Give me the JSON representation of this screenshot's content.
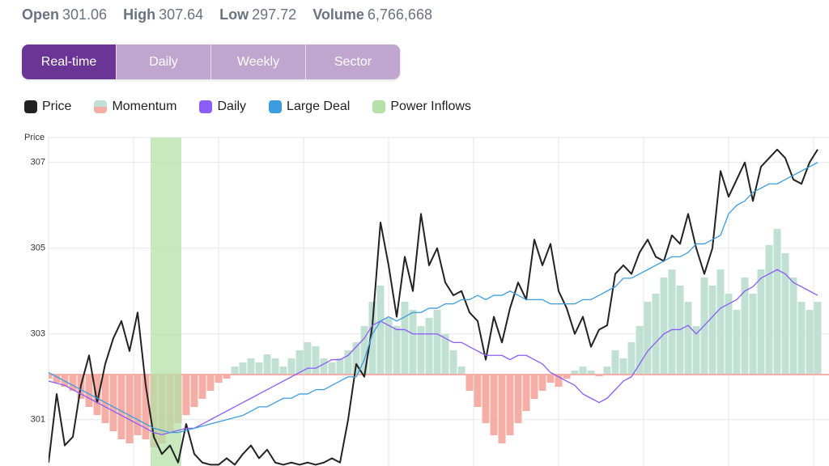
{
  "stats": [
    {
      "label": "Open",
      "value": "301.06"
    },
    {
      "label": "High",
      "value": "307.64"
    },
    {
      "label": "Low",
      "value": "297.72"
    },
    {
      "label": "Volume",
      "value": "6,766,668"
    }
  ],
  "tabs": [
    "Real-time",
    "Daily",
    "Weekly",
    "Sector"
  ],
  "chart_data": {
    "type": "line",
    "y_label": "Price",
    "ylim": [
      299.92,
      307.58
    ],
    "yticks": [
      301,
      303,
      305,
      307
    ],
    "y2lim": [
      -1.13,
      2.93
    ],
    "grid": true,
    "series": [
      {
        "name": "Price",
        "type": "line",
        "color": "#222222",
        "values": [
          300.0,
          301.6,
          300.4,
          300.6,
          301.8,
          302.5,
          301.4,
          302.3,
          302.9,
          303.3,
          302.6,
          303.5,
          301.8,
          300.6,
          300.2,
          300.4,
          300.0,
          300.9,
          300.2,
          300.0,
          299.95,
          299.95,
          300.1,
          299.95,
          300.2,
          300.4,
          300.1,
          300.3,
          300.0,
          299.95,
          300.0,
          299.95,
          300.0,
          299.95,
          300.0,
          300.1,
          300.0,
          301.0,
          302.3,
          302.0,
          303.2,
          305.6,
          304.6,
          303.4,
          304.8,
          304.0,
          305.8,
          304.6,
          305.0,
          304.2,
          303.9,
          304.0,
          303.5,
          303.3,
          302.4,
          303.4,
          302.8,
          303.6,
          304.2,
          303.8,
          305.2,
          304.6,
          305.1,
          304.0,
          303.6,
          303.0,
          303.4,
          302.7,
          303.1,
          303.2,
          304.4,
          304.6,
          304.4,
          304.9,
          305.2,
          304.8,
          304.7,
          305.3,
          305.1,
          305.8,
          305.0,
          304.4,
          305.0,
          306.8,
          306.2,
          306.6,
          307.0,
          306.1,
          306.9,
          307.1,
          307.3,
          307.1,
          306.6,
          306.5,
          307.0,
          307.3
        ]
      },
      {
        "name": "Momentum",
        "type": "bar",
        "axis": "y2",
        "color": "#bfe0d3",
        "negative_color": "#f4aea5",
        "values": [
          -0.05,
          -0.1,
          -0.15,
          -0.2,
          -0.3,
          -0.4,
          -0.5,
          -0.6,
          -0.7,
          -0.8,
          -0.85,
          -0.75,
          -0.8,
          -0.9,
          -0.85,
          -0.7,
          -0.6,
          -0.5,
          -0.4,
          -0.3,
          -0.2,
          -0.1,
          -0.05,
          0.1,
          0.15,
          0.2,
          0.15,
          0.25,
          0.2,
          0.1,
          0.2,
          0.3,
          0.4,
          0.35,
          0.2,
          0.15,
          0.2,
          0.3,
          0.4,
          0.6,
          0.9,
          1.1,
          0.7,
          0.6,
          0.9,
          0.8,
          0.6,
          0.7,
          0.8,
          0.5,
          0.3,
          0.1,
          -0.2,
          -0.4,
          -0.6,
          -0.75,
          -0.85,
          -0.75,
          -0.6,
          -0.45,
          -0.3,
          -0.2,
          -0.1,
          -0.15,
          -0.05,
          0.05,
          0.1,
          0.05,
          -0.02,
          0.1,
          0.3,
          0.2,
          0.4,
          0.6,
          0.9,
          1.0,
          1.2,
          1.3,
          1.1,
          0.9,
          0.6,
          1.2,
          1.1,
          1.3,
          1.0,
          0.8,
          1.2,
          1.0,
          1.3,
          1.6,
          1.8,
          1.5,
          1.2,
          0.9,
          0.8,
          0.9
        ]
      },
      {
        "name": "Daily",
        "type": "line",
        "color": "#8b5cf6",
        "values": [
          301.9,
          301.85,
          301.8,
          301.7,
          301.6,
          301.5,
          301.4,
          301.3,
          301.2,
          301.1,
          301.0,
          300.9,
          300.8,
          300.7,
          300.65,
          300.7,
          300.75,
          300.8,
          300.8,
          300.9,
          301.0,
          301.1,
          301.2,
          301.3,
          301.4,
          301.5,
          301.6,
          301.7,
          301.8,
          301.9,
          302.0,
          302.1,
          302.2,
          302.2,
          302.3,
          302.4,
          302.4,
          302.5,
          302.7,
          302.9,
          303.2,
          303.3,
          303.2,
          303.1,
          303.1,
          303.0,
          303.0,
          303.0,
          303.0,
          302.9,
          302.8,
          302.8,
          302.7,
          302.6,
          302.5,
          302.5,
          302.5,
          302.4,
          302.5,
          302.5,
          302.4,
          302.3,
          302.1,
          302.0,
          301.9,
          301.8,
          301.6,
          301.5,
          301.4,
          301.5,
          301.7,
          301.9,
          302.0,
          302.3,
          302.6,
          302.8,
          303.0,
          303.1,
          303.1,
          303.2,
          303.0,
          303.2,
          303.4,
          303.6,
          303.7,
          303.8,
          304.0,
          304.1,
          304.3,
          304.4,
          304.5,
          304.4,
          304.2,
          304.1,
          304.0,
          303.9
        ]
      },
      {
        "name": "Large Deal",
        "type": "line",
        "color": "#3b9de0",
        "values": [
          302.1,
          302.0,
          301.9,
          301.8,
          301.7,
          301.6,
          301.5,
          301.4,
          301.3,
          301.2,
          301.1,
          301.0,
          300.9,
          300.8,
          300.75,
          300.7,
          300.7,
          300.75,
          300.8,
          300.85,
          300.9,
          300.95,
          301.0,
          301.05,
          301.1,
          301.2,
          301.3,
          301.3,
          301.4,
          301.5,
          301.5,
          301.6,
          301.6,
          301.7,
          301.7,
          301.8,
          301.9,
          302.0,
          302.0,
          302.4,
          303.0,
          303.3,
          303.4,
          303.3,
          303.4,
          303.5,
          303.5,
          303.6,
          303.6,
          303.7,
          303.7,
          303.8,
          303.8,
          303.9,
          303.8,
          303.9,
          303.9,
          304.0,
          303.9,
          303.8,
          303.8,
          303.8,
          303.7,
          303.7,
          303.7,
          303.7,
          303.8,
          303.8,
          303.9,
          304.0,
          304.1,
          304.3,
          304.3,
          304.4,
          304.5,
          304.6,
          304.7,
          304.8,
          304.8,
          304.9,
          305.1,
          305.1,
          305.2,
          305.3,
          305.8,
          306.0,
          306.1,
          306.3,
          306.4,
          306.5,
          306.5,
          306.6,
          306.7,
          306.8,
          306.9,
          307.0
        ]
      },
      {
        "name": "Power Inflows",
        "type": "band",
        "color": "#b5e0a8",
        "range": [
          13,
          16
        ]
      }
    ]
  }
}
